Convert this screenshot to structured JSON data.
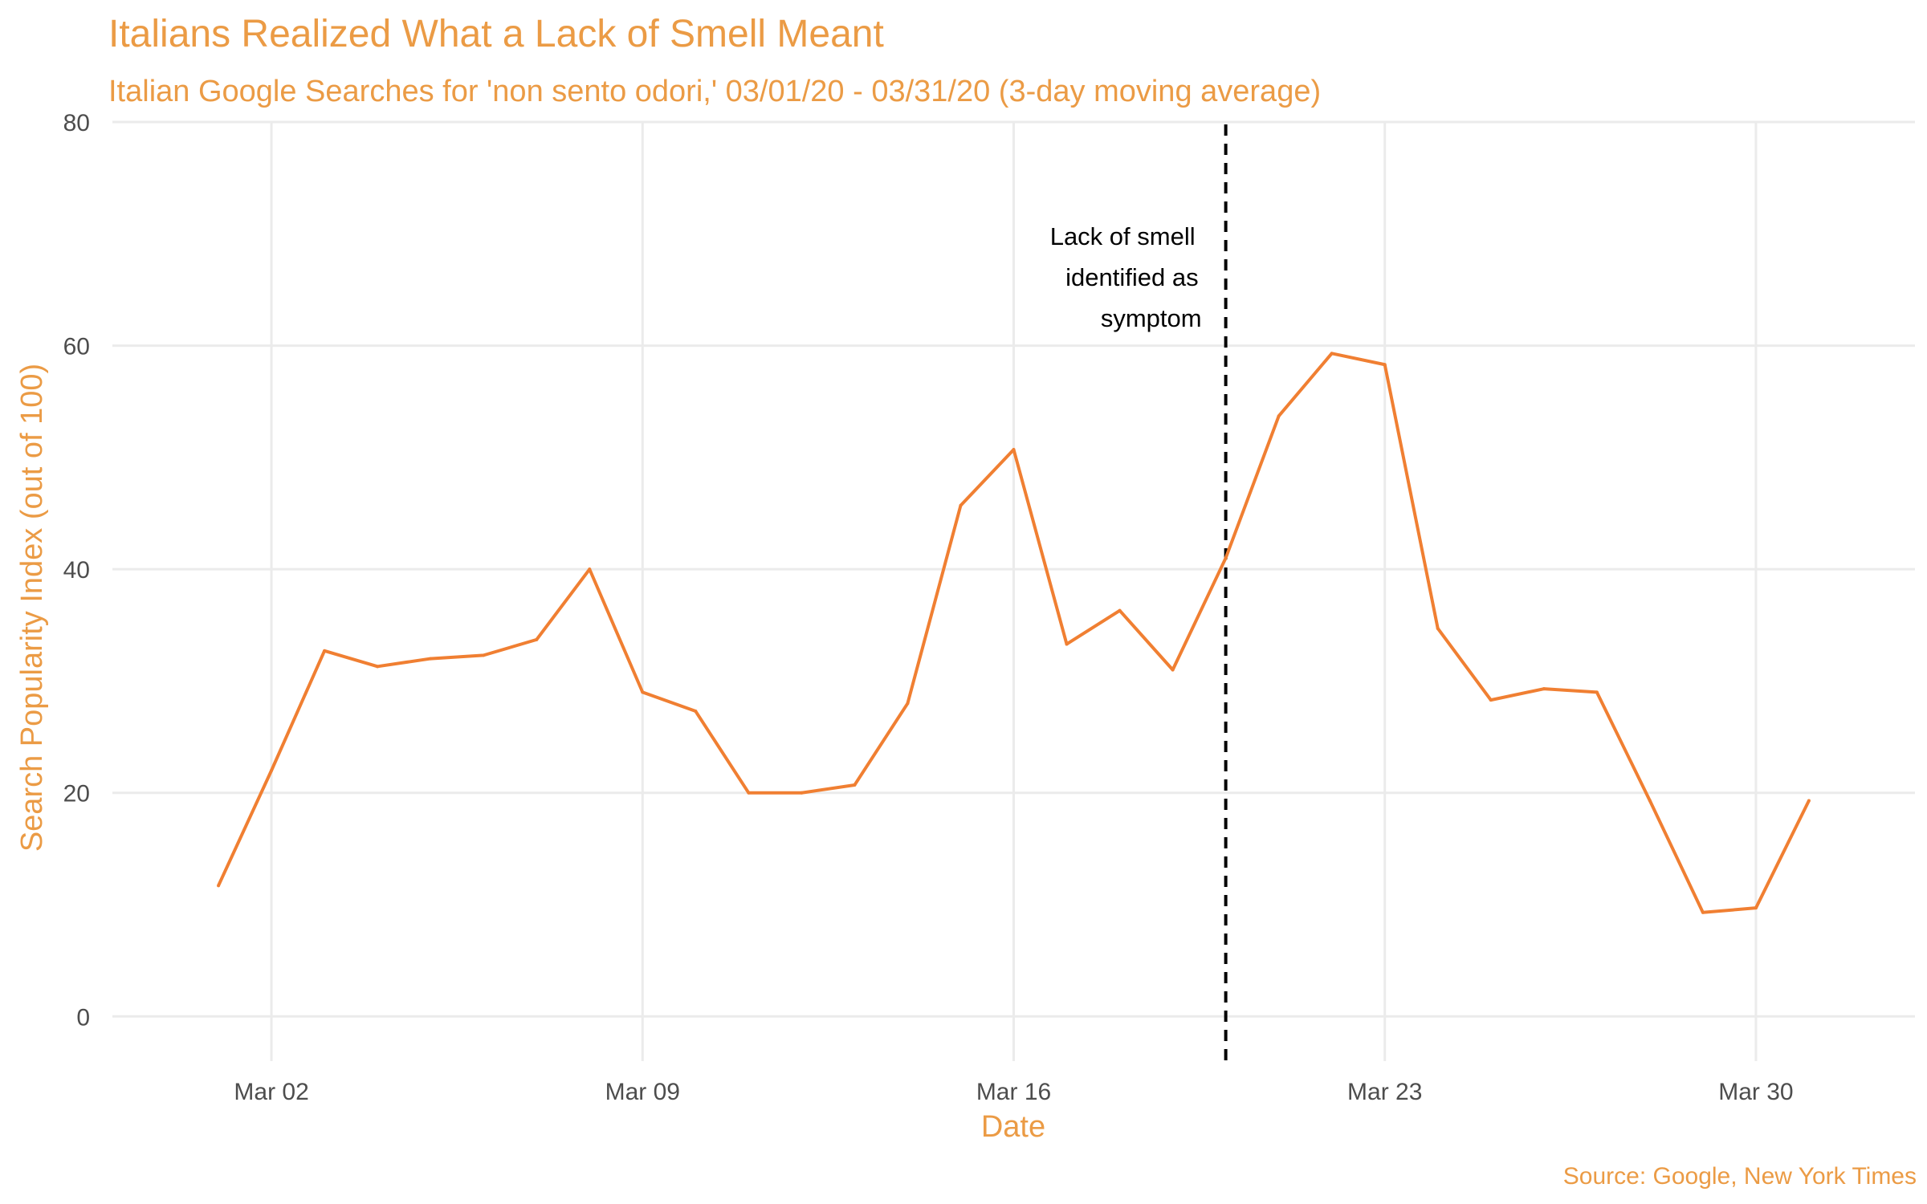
{
  "colors": {
    "accent": "#EB9B45",
    "series_line": "#F07F32",
    "marker_line": "#000000",
    "grid": "#EBEBEB",
    "tick_text": "#4D4D4D"
  },
  "chart_data": {
    "type": "line",
    "title": "Italians Realized What a Lack of Smell Meant",
    "subtitle": "Italian Google Searches for 'non sento odori,' 03/01/20 - 03/31/20 (3-day moving average)",
    "xlabel": "Date",
    "ylabel": "Search Popularity Index (out of 100)",
    "caption": "Source: Google, New York Times",
    "xlim": [
      "2020-02-28",
      "2020-04-02"
    ],
    "ylim": [
      -4,
      80
    ],
    "x_ticks": [
      {
        "date": "2020-03-02",
        "label": "Mar 02"
      },
      {
        "date": "2020-03-09",
        "label": "Mar 09"
      },
      {
        "date": "2020-03-16",
        "label": "Mar 16"
      },
      {
        "date": "2020-03-23",
        "label": "Mar 23"
      },
      {
        "date": "2020-03-30",
        "label": "Mar 30"
      }
    ],
    "y_ticks": [
      0,
      20,
      40,
      60,
      80
    ],
    "grid": true,
    "legend": "none",
    "series": [
      {
        "x": [
          "2020-03-01",
          "2020-03-02",
          "2020-03-03",
          "2020-03-04",
          "2020-03-05",
          "2020-03-06",
          "2020-03-07",
          "2020-03-08",
          "2020-03-09",
          "2020-03-10",
          "2020-03-11",
          "2020-03-12",
          "2020-03-13",
          "2020-03-14",
          "2020-03-15",
          "2020-03-16",
          "2020-03-17",
          "2020-03-18",
          "2020-03-19",
          "2020-03-20",
          "2020-03-21",
          "2020-03-22",
          "2020-03-23",
          "2020-03-24",
          "2020-03-25",
          "2020-03-26",
          "2020-03-27",
          "2020-03-28",
          "2020-03-29",
          "2020-03-30",
          "2020-03-31"
        ],
        "values": [
          11.7,
          22.0,
          32.7,
          31.3,
          32.0,
          32.3,
          33.7,
          40.0,
          29.0,
          27.3,
          20.0,
          20.0,
          20.7,
          28.0,
          45.7,
          50.7,
          33.3,
          36.3,
          31.0,
          41.0,
          53.7,
          59.3,
          58.3,
          34.7,
          28.3,
          29.3,
          29.0,
          19.3,
          9.3,
          9.7,
          19.3
        ]
      }
    ],
    "annotations": [
      {
        "type": "vline",
        "x": "2020-03-20",
        "text": [
          "Lack of smell",
          "identified as",
          "symptom"
        ]
      }
    ]
  }
}
